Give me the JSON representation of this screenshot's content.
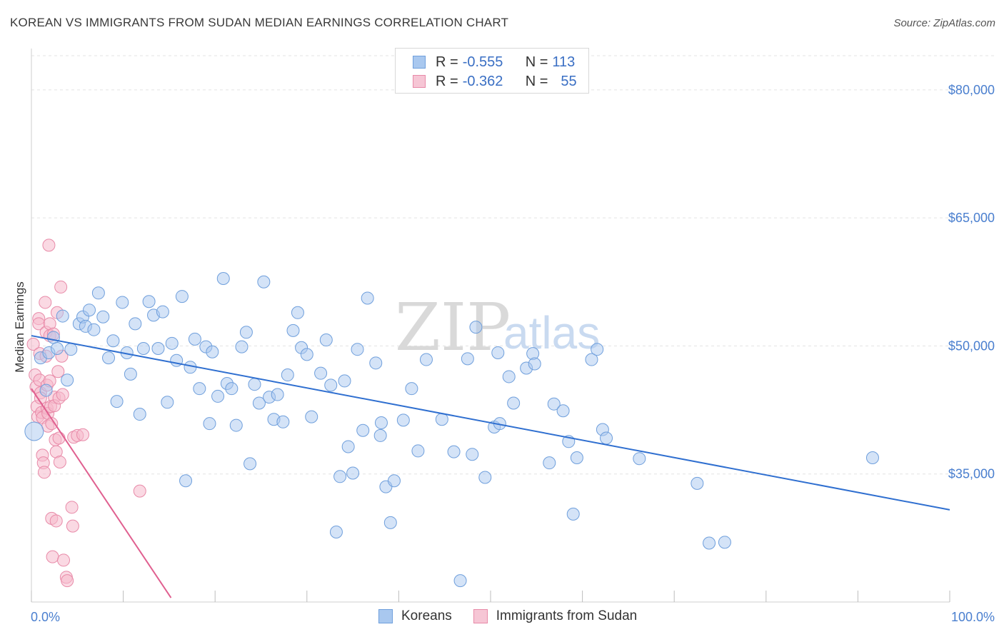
{
  "title": "KOREAN VS IMMIGRANTS FROM SUDAN MEDIAN EARNINGS CORRELATION CHART",
  "source": "Source: ZipAtlas.com",
  "watermark": {
    "zip": "ZIP",
    "atlas": "atlas"
  },
  "legend": {
    "rows": [
      {
        "r_label": "R = ",
        "r_value": "-0.555",
        "n_label": "N = ",
        "n_value": "113"
      },
      {
        "r_label": "R = ",
        "r_value": "-0.362",
        "n_label": "N = ",
        "n_value": "55"
      }
    ]
  },
  "colors": {
    "koreans_fill": "#a9c8ef",
    "koreans_stroke": "#6f9fdc",
    "koreans_line": "#2f6fd0",
    "sudan_fill": "#f6b9cc",
    "sudan_stroke": "#e88aa8",
    "sudan_line": "#e06090",
    "tick_label": "#4a7fcf"
  },
  "chart_data": {
    "type": "scatter",
    "ylabel": "Median Earnings",
    "xlim": [
      0,
      100
    ],
    "ylim": [
      20000,
      84000
    ],
    "x_tick_labels": [
      "0.0%",
      "100.0%"
    ],
    "y_ticks": [
      {
        "value": 35000,
        "label": "$35,000"
      },
      {
        "value": 50000,
        "label": "$50,000"
      },
      {
        "value": 65000,
        "label": "$65,000"
      },
      {
        "value": 80000,
        "label": "$80,000"
      }
    ],
    "series": [
      {
        "name": "Koreans",
        "trend": {
          "x": [
            0,
            100
          ],
          "y": [
            51200,
            30800
          ]
        },
        "points": [
          [
            0.3,
            40000
          ],
          [
            1,
            48600
          ],
          [
            1.6,
            44800
          ],
          [
            1.9,
            49200
          ],
          [
            2.4,
            51000
          ],
          [
            2.8,
            49700
          ],
          [
            3.4,
            53500
          ],
          [
            3.9,
            46000
          ],
          [
            4.3,
            49600
          ],
          [
            5.2,
            52600
          ],
          [
            5.6,
            53400
          ],
          [
            5.9,
            52300
          ],
          [
            6.3,
            54200
          ],
          [
            6.8,
            51900
          ],
          [
            7.3,
            56200
          ],
          [
            7.8,
            53400
          ],
          [
            8.4,
            48600
          ],
          [
            8.9,
            50600
          ],
          [
            9.3,
            43500
          ],
          [
            9.9,
            55100
          ],
          [
            10.4,
            49200
          ],
          [
            10.8,
            46700
          ],
          [
            11.3,
            52600
          ],
          [
            11.8,
            42000
          ],
          [
            12.2,
            49700
          ],
          [
            12.8,
            55200
          ],
          [
            13.3,
            53600
          ],
          [
            13.8,
            49700
          ],
          [
            14.3,
            54000
          ],
          [
            14.8,
            43400
          ],
          [
            15.3,
            50300
          ],
          [
            15.8,
            48300
          ],
          [
            16.4,
            55800
          ],
          [
            16.8,
            34200
          ],
          [
            17.3,
            47500
          ],
          [
            17.8,
            50800
          ],
          [
            18.3,
            45000
          ],
          [
            19,
            49900
          ],
          [
            19.4,
            40900
          ],
          [
            19.7,
            49300
          ],
          [
            20.3,
            44100
          ],
          [
            20.9,
            57900
          ],
          [
            21.3,
            45600
          ],
          [
            21.8,
            45000
          ],
          [
            22.3,
            40700
          ],
          [
            22.9,
            49900
          ],
          [
            23.4,
            51600
          ],
          [
            23.8,
            36200
          ],
          [
            24.3,
            45500
          ],
          [
            24.8,
            43300
          ],
          [
            25.3,
            57500
          ],
          [
            25.9,
            44000
          ],
          [
            26.4,
            41400
          ],
          [
            26.8,
            44300
          ],
          [
            27.4,
            41100
          ],
          [
            27.9,
            46600
          ],
          [
            28.5,
            51800
          ],
          [
            29,
            53900
          ],
          [
            29.4,
            49800
          ],
          [
            30,
            49000
          ],
          [
            30.5,
            41700
          ],
          [
            31.5,
            46800
          ],
          [
            32.1,
            50700
          ],
          [
            32.6,
            45400
          ],
          [
            33.2,
            28200
          ],
          [
            33.6,
            34700
          ],
          [
            34.1,
            45900
          ],
          [
            34.5,
            38200
          ],
          [
            35,
            35100
          ],
          [
            35.5,
            49600
          ],
          [
            36.1,
            40100
          ],
          [
            36.6,
            55600
          ],
          [
            37.5,
            48000
          ],
          [
            38,
            39500
          ],
          [
            38.1,
            41000
          ],
          [
            38.6,
            33500
          ],
          [
            39.1,
            29300
          ],
          [
            39.5,
            34200
          ],
          [
            40.5,
            41300
          ],
          [
            41.4,
            45000
          ],
          [
            42.1,
            37700
          ],
          [
            43,
            48400
          ],
          [
            44.7,
            41400
          ],
          [
            46,
            37600
          ],
          [
            46.7,
            22500
          ],
          [
            47.5,
            48500
          ],
          [
            48,
            37300
          ],
          [
            48.4,
            52200
          ],
          [
            49.4,
            34600
          ],
          [
            50.4,
            40500
          ],
          [
            50.8,
            49200
          ],
          [
            51,
            40900
          ],
          [
            52,
            46400
          ],
          [
            52.5,
            43300
          ],
          [
            53.9,
            47400
          ],
          [
            54.6,
            49100
          ],
          [
            54.8,
            47900
          ],
          [
            56.4,
            36300
          ],
          [
            56.9,
            43200
          ],
          [
            57.9,
            42400
          ],
          [
            58.5,
            38800
          ],
          [
            59,
            30300
          ],
          [
            59.4,
            36900
          ],
          [
            61,
            48400
          ],
          [
            61.6,
            49600
          ],
          [
            62.2,
            40200
          ],
          [
            62.6,
            39200
          ],
          [
            66.2,
            36800
          ],
          [
            72.5,
            33900
          ],
          [
            73.8,
            26900
          ],
          [
            75.5,
            27000
          ],
          [
            91.6,
            36900
          ]
        ]
      },
      {
        "name": "Immigrants from Sudan",
        "trend": {
          "x": [
            0,
            15.2
          ],
          "y": [
            45000,
            20500
          ]
        },
        "points": [
          [
            0.2,
            50200
          ],
          [
            0.4,
            46600
          ],
          [
            0.5,
            45200
          ],
          [
            0.6,
            42900
          ],
          [
            0.7,
            41700
          ],
          [
            0.8,
            53200
          ],
          [
            0.8,
            52600
          ],
          [
            0.9,
            49100
          ],
          [
            0.9,
            46000
          ],
          [
            1,
            44500
          ],
          [
            1,
            43900
          ],
          [
            1.1,
            42200
          ],
          [
            1.2,
            41600
          ],
          [
            1.2,
            37200
          ],
          [
            1.3,
            36300
          ],
          [
            1.4,
            35200
          ],
          [
            1.5,
            55100
          ],
          [
            1.6,
            51600
          ],
          [
            1.6,
            48800
          ],
          [
            1.7,
            45400
          ],
          [
            1.7,
            42700
          ],
          [
            1.8,
            42100
          ],
          [
            1.8,
            40600
          ],
          [
            1.9,
            61800
          ],
          [
            2,
            52600
          ],
          [
            2,
            51200
          ],
          [
            2,
            45900
          ],
          [
            2.1,
            42900
          ],
          [
            2.2,
            40900
          ],
          [
            2.2,
            29800
          ],
          [
            2.3,
            25300
          ],
          [
            2.4,
            51400
          ],
          [
            2.5,
            44000
          ],
          [
            2.5,
            43000
          ],
          [
            2.6,
            39000
          ],
          [
            2.7,
            37600
          ],
          [
            2.7,
            29500
          ],
          [
            2.8,
            53900
          ],
          [
            2.9,
            47000
          ],
          [
            3,
            43900
          ],
          [
            3,
            39200
          ],
          [
            3.1,
            36400
          ],
          [
            3.2,
            56900
          ],
          [
            3.3,
            48800
          ],
          [
            3.4,
            44300
          ],
          [
            3.5,
            24900
          ],
          [
            3.8,
            22900
          ],
          [
            3.9,
            22500
          ],
          [
            4.4,
            31100
          ],
          [
            4.5,
            28900
          ],
          [
            4.6,
            39300
          ],
          [
            5,
            39500
          ],
          [
            5.6,
            39600
          ],
          [
            11.8,
            33000
          ]
        ]
      }
    ]
  },
  "bottom_legend": [
    {
      "label": "Koreans"
    },
    {
      "label": "Immigrants from Sudan"
    }
  ]
}
